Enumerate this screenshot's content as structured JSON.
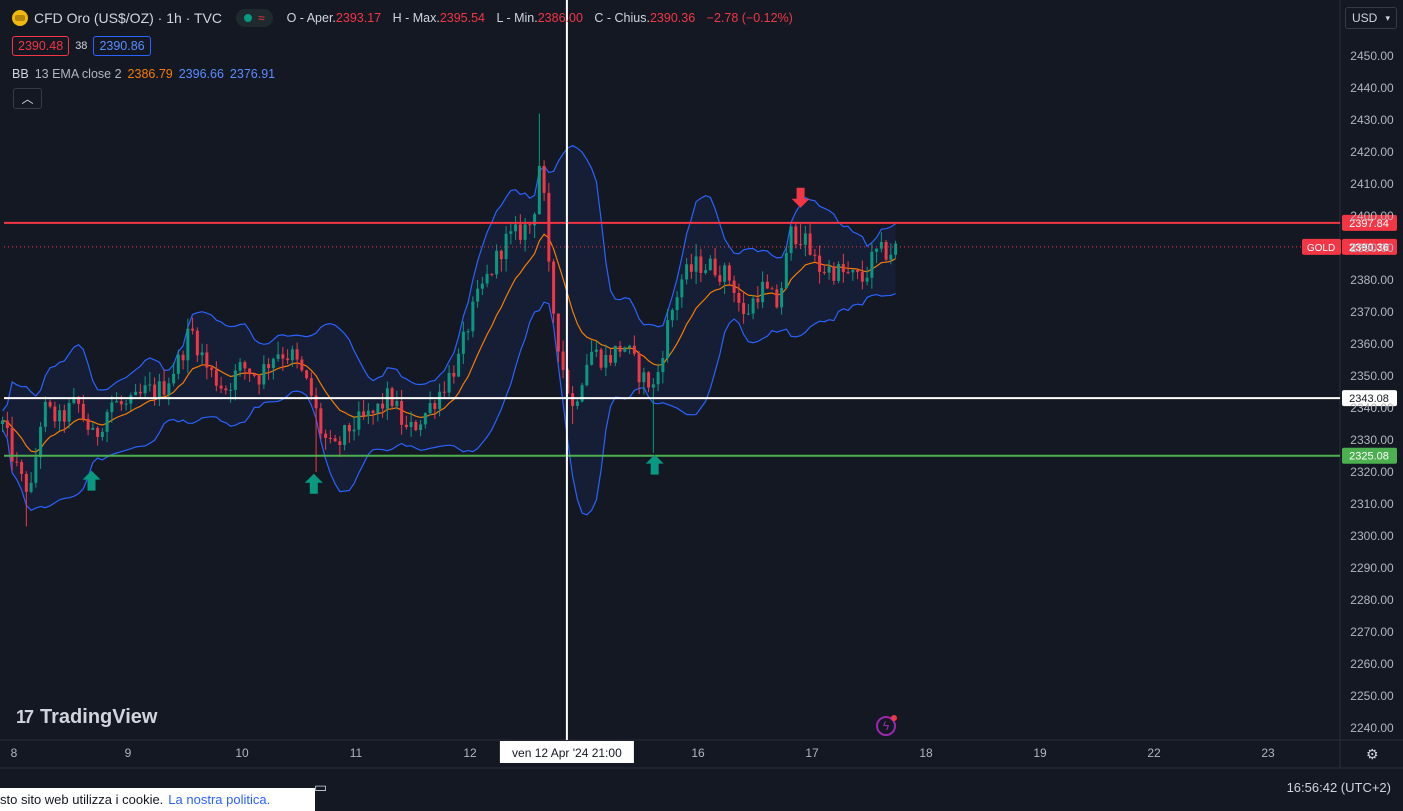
{
  "header": {
    "title": "CFD Oro (US$/OZ) · 1h · TVC",
    "ohlc": {
      "open_label": "O - Aper.",
      "open": "2393.17",
      "high_label": "H - Max.",
      "high": "2395.54",
      "low_label": "L - Min.",
      "low": "2386.00",
      "close_label": "C - Chius.",
      "close": "2390.36",
      "change": "−2.78 (−0.12%)"
    },
    "bid": "2390.48",
    "spread": "38",
    "ask": "2390.86"
  },
  "indicator": {
    "name": "BB",
    "params": "13 EMA close 2",
    "basis": "2386.79",
    "upper": "2396.66",
    "lower": "2376.91"
  },
  "currency": "USD",
  "branding": "TradingView",
  "cookie": {
    "text": "sto sito web utilizza i cookie.",
    "link": "La nostra politica."
  },
  "clock": "16:56:42 (UTC+2)",
  "crosshair_label": "ven 12 Apr '24   21:00",
  "colors": {
    "up": "#089981",
    "down": "#f23645",
    "basis": "#f57c00",
    "band": "#2962ff",
    "background": "#141823"
  },
  "chart_data": {
    "type": "candlestick",
    "title": "CFD Oro (US$/OZ) · 1h · TVC",
    "ylim": [
      2235,
      2458
    ],
    "y_ticks": [
      2450,
      2440,
      2430,
      2420,
      2410,
      2400,
      2390,
      2380,
      2370,
      2360,
      2350,
      2340,
      2330,
      2320,
      2310,
      2300,
      2290,
      2280,
      2270,
      2260,
      2250,
      2240
    ],
    "x_ticks": [
      {
        "label": "8",
        "day": 0
      },
      {
        "label": "9",
        "day": 1
      },
      {
        "label": "10",
        "day": 2
      },
      {
        "label": "11",
        "day": 3
      },
      {
        "label": "12",
        "day": 4
      },
      {
        "label": "16",
        "day": 6
      },
      {
        "label": "17",
        "day": 7
      },
      {
        "label": "18",
        "day": 8
      },
      {
        "label": "19",
        "day": 9
      },
      {
        "label": "22",
        "day": 10
      },
      {
        "label": "23",
        "day": 11
      }
    ],
    "hlines": [
      {
        "price": 2397.84,
        "label": "2397.84",
        "color": "#f23645"
      },
      {
        "price": 2343.08,
        "label": "2343.08",
        "color": "#ffffff"
      },
      {
        "price": 2325.08,
        "label": "2325.08",
        "color": "#4caf50"
      }
    ],
    "last_price": {
      "price": 2390.36,
      "label": "2390.36",
      "symbol": "GOLD"
    },
    "crosshair_day": 4.85,
    "arrows": [
      {
        "day": 0.68,
        "price": 2317,
        "dir": "up"
      },
      {
        "day": 2.63,
        "price": 2316,
        "dir": "up"
      },
      {
        "day": 5.62,
        "price": 2322,
        "dir": "up"
      },
      {
        "day": 6.9,
        "price": 2406,
        "dir": "down"
      }
    ],
    "close_path": [
      [
        -0.1,
        2335
      ],
      [
        0.05,
        2318
      ],
      [
        0.15,
        2314
      ],
      [
        0.25,
        2340
      ],
      [
        0.4,
        2336
      ],
      [
        0.55,
        2342
      ],
      [
        0.7,
        2330
      ],
      [
        0.85,
        2342
      ],
      [
        1.0,
        2340
      ],
      [
        1.15,
        2345
      ],
      [
        1.3,
        2346
      ],
      [
        1.45,
        2355
      ],
      [
        1.55,
        2365
      ],
      [
        1.7,
        2352
      ],
      [
        1.85,
        2346
      ],
      [
        2.0,
        2353
      ],
      [
        2.15,
        2350
      ],
      [
        2.3,
        2358
      ],
      [
        2.45,
        2356
      ],
      [
        2.6,
        2345
      ],
      [
        2.7,
        2332
      ],
      [
        2.8,
        2326
      ],
      [
        2.95,
        2334
      ],
      [
        3.05,
        2336
      ],
      [
        3.15,
        2338
      ],
      [
        3.3,
        2344
      ],
      [
        3.45,
        2332
      ],
      [
        3.6,
        2338
      ],
      [
        3.75,
        2346
      ],
      [
        3.9,
        2355
      ],
      [
        4.0,
        2368
      ],
      [
        4.1,
        2377
      ],
      [
        4.2,
        2384
      ],
      [
        4.3,
        2392
      ],
      [
        4.4,
        2394
      ],
      [
        4.55,
        2398
      ],
      [
        4.62,
        2420
      ],
      [
        4.7,
        2378
      ],
      [
        4.8,
        2355
      ],
      [
        4.9,
        2340
      ],
      [
        5.05,
        2358
      ],
      [
        5.2,
        2355
      ],
      [
        5.35,
        2360
      ],
      [
        5.5,
        2350
      ],
      [
        5.62,
        2346
      ],
      [
        5.72,
        2364
      ],
      [
        5.85,
        2380
      ],
      [
        6.0,
        2385
      ],
      [
        6.15,
        2384
      ],
      [
        6.3,
        2380
      ],
      [
        6.4,
        2368
      ],
      [
        6.55,
        2378
      ],
      [
        6.7,
        2372
      ],
      [
        6.82,
        2395
      ],
      [
        6.9,
        2394
      ],
      [
        7.05,
        2384
      ],
      [
        7.2,
        2383
      ],
      [
        7.35,
        2381
      ],
      [
        7.45,
        2380
      ],
      [
        7.55,
        2388
      ],
      [
        7.7,
        2389
      ],
      [
        7.75,
        2390.36
      ]
    ]
  }
}
